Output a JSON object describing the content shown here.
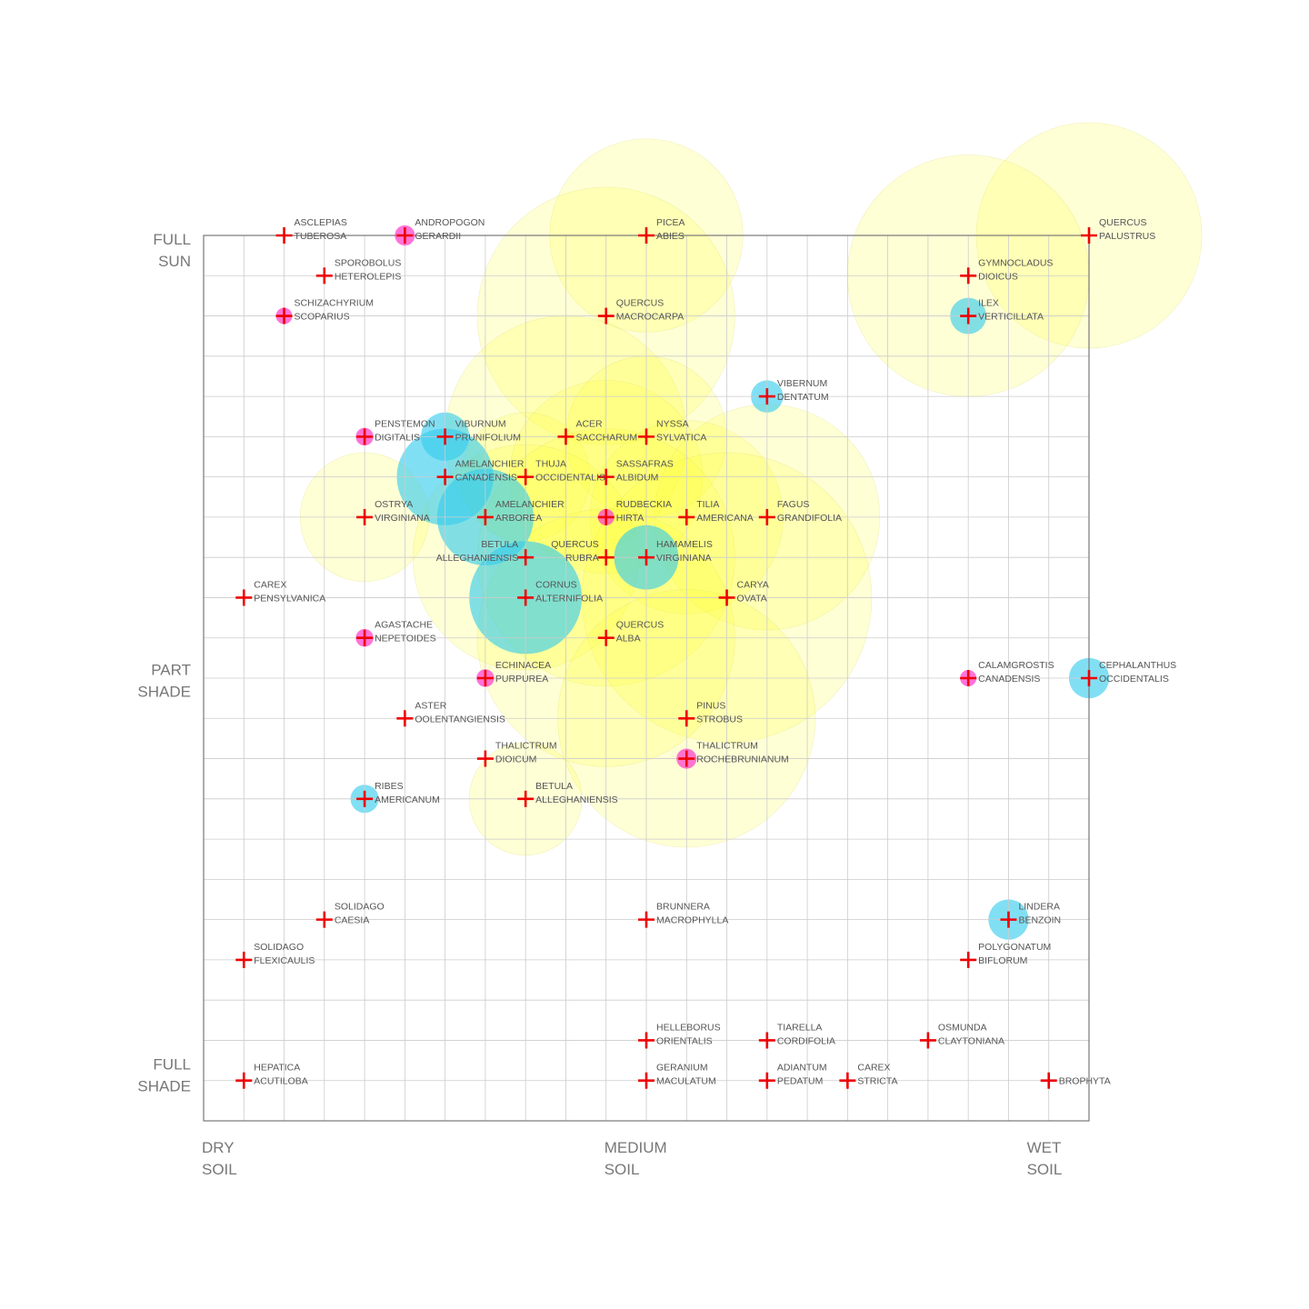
{
  "chart_data": {
    "type": "scatter",
    "x_axis": {
      "min": 0,
      "max": 22,
      "labels": [
        {
          "x": 0,
          "lines": [
            "DRY",
            "SOIL"
          ]
        },
        {
          "x": 10,
          "lines": [
            "MEDIUM",
            "SOIL"
          ]
        },
        {
          "x": 20.5,
          "lines": [
            "WET",
            "SOIL"
          ]
        }
      ]
    },
    "y_axis": {
      "min": 0,
      "max": 22,
      "labels": [
        {
          "y": 22,
          "lines": [
            "FULL",
            "SUN"
          ]
        },
        {
          "y": 11.3,
          "lines": [
            "PART",
            "SHADE"
          ]
        },
        {
          "y": 1.5,
          "lines": [
            "FULL",
            "SHADE"
          ]
        }
      ]
    },
    "grid": true,
    "colors": {
      "tree_canopy": "#ffff33",
      "shrub_canopy": "#33ccee",
      "flower": "#ff44cc",
      "marker": "#ee0000",
      "grid": "#cccccc",
      "frame": "#777777"
    },
    "points": [
      {
        "lines": [
          "ASCLEPIAS",
          "TUBEROSA"
        ],
        "x": 2,
        "y": 22,
        "canopy": "none"
      },
      {
        "lines": [
          "ANDROPOGON",
          "GERARDII"
        ],
        "x": 5,
        "y": 22,
        "canopy": "flower",
        "r": 0.25
      },
      {
        "lines": [
          "PICEA",
          "ABIES"
        ],
        "x": 11,
        "y": 22,
        "canopy": "tree",
        "r": 2.4
      },
      {
        "lines": [
          "QUERCUS",
          "PALUSTRUS"
        ],
        "x": 22,
        "y": 22,
        "canopy": "tree",
        "r": 2.8
      },
      {
        "lines": [
          "SPOROBOLUS",
          "HETEROLEPIS"
        ],
        "x": 3,
        "y": 21,
        "canopy": "none"
      },
      {
        "lines": [
          "GYMNOCLADUS",
          "DIOICUS"
        ],
        "x": 19,
        "y": 21,
        "canopy": "tree",
        "r": 3.0
      },
      {
        "lines": [
          "SCHIZACHYRIUM",
          "SCOPARIUS"
        ],
        "x": 2,
        "y": 20,
        "canopy": "flower",
        "r": 0.2
      },
      {
        "lines": [
          "QUERCUS",
          "MACROCARPA"
        ],
        "x": 10,
        "y": 20,
        "canopy": "tree",
        "r": 3.2
      },
      {
        "lines": [
          "ILEX",
          "VERTICILLATA"
        ],
        "x": 19,
        "y": 20,
        "canopy": "shrub",
        "r": 0.45
      },
      {
        "lines": [
          "VIBERNUM",
          "DENTATUM"
        ],
        "x": 14,
        "y": 18,
        "canopy": "shrub",
        "r": 0.4
      },
      {
        "lines": [
          "PENSTEMON",
          "DIGITALIS"
        ],
        "x": 4,
        "y": 17,
        "canopy": "flower",
        "r": 0.22
      },
      {
        "lines": [
          "VIBURNUM",
          "PRUNIFOLIUM"
        ],
        "x": 6,
        "y": 17,
        "canopy": "shrub",
        "r": 0.6
      },
      {
        "lines": [
          "ACER",
          "SACCHARUM"
        ],
        "x": 9,
        "y": 17,
        "canopy": "tree",
        "r": 3.0
      },
      {
        "lines": [
          "NYSSA",
          "SYLVATICA"
        ],
        "x": 11,
        "y": 17,
        "canopy": "tree",
        "r": 2.0
      },
      {
        "lines": [
          "AMELANCHIER",
          "CANADENSIS"
        ],
        "x": 6,
        "y": 16,
        "canopy": "shrub",
        "r": 1.2
      },
      {
        "lines": [
          "THUJA",
          "OCCIDENTALIS"
        ],
        "x": 8,
        "y": 16,
        "canopy": "tree",
        "r": 1.6
      },
      {
        "lines": [
          "SASSAFRAS",
          "ALBIDUM"
        ],
        "x": 10,
        "y": 16,
        "canopy": "tree",
        "r": 2.4
      },
      {
        "lines": [
          "OSTRYA",
          "VIRGINIANA"
        ],
        "x": 4,
        "y": 15,
        "canopy": "tree",
        "r": 1.6
      },
      {
        "lines": [
          "AMELANCHIER",
          "ARBOREA"
        ],
        "x": 7,
        "y": 15,
        "canopy": "shrub",
        "r": 1.2
      },
      {
        "lines": [
          "RUDBECKIA",
          "HIRTA"
        ],
        "x": 10,
        "y": 15,
        "canopy": "flower",
        "r": 0.2
      },
      {
        "lines": [
          "TILIA",
          "AMERICANA"
        ],
        "x": 12,
        "y": 15,
        "canopy": "tree",
        "r": 2.4
      },
      {
        "lines": [
          "FAGUS",
          "GRANDIFOLIA"
        ],
        "x": 14,
        "y": 15,
        "canopy": "tree",
        "r": 2.8
      },
      {
        "lines": [
          "BETULA",
          "ALLEGHANIENSIS"
        ],
        "x": 8,
        "y": 14,
        "canopy": "tree",
        "r": 2.8,
        "label_side": "left"
      },
      {
        "lines": [
          "QUERCUS",
          "RUBRA"
        ],
        "x": 10,
        "y": 14,
        "canopy": "tree",
        "r": 3.2,
        "label_side": "left"
      },
      {
        "lines": [
          "HAMAMELIS",
          "VIRGINIANA"
        ],
        "x": 11,
        "y": 14,
        "canopy": "shrub",
        "r": 0.8
      },
      {
        "lines": [
          "CAREX",
          "PENSYLVANICA"
        ],
        "x": 1,
        "y": 13,
        "canopy": "none"
      },
      {
        "lines": [
          "CORNUS",
          "ALTERNIFOLIA"
        ],
        "x": 8,
        "y": 13,
        "canopy": "shrub",
        "r": 1.4
      },
      {
        "lines": [
          "CARYA",
          "OVATA"
        ],
        "x": 13,
        "y": 13,
        "canopy": "tree",
        "r": 3.6
      },
      {
        "lines": [
          "AGASTACHE",
          "NEPETOIDES"
        ],
        "x": 4,
        "y": 12,
        "canopy": "flower",
        "r": 0.22
      },
      {
        "lines": [
          "QUERCUS",
          "ALBA"
        ],
        "x": 10,
        "y": 12,
        "canopy": "tree",
        "r": 3.2
      },
      {
        "lines": [
          "ECHINACEA",
          "PURPUREA"
        ],
        "x": 7,
        "y": 11,
        "canopy": "flower",
        "r": 0.22
      },
      {
        "lines": [
          "CALAMGROSTIS",
          "CANADENSIS"
        ],
        "x": 19,
        "y": 11,
        "canopy": "flower",
        "r": 0.2
      },
      {
        "lines": [
          "CEPHALANTHUS",
          "OCCIDENTALIS"
        ],
        "x": 22,
        "y": 11,
        "canopy": "shrub",
        "r": 0.5
      },
      {
        "lines": [
          "ASTER",
          "OOLENTANGIENSIS"
        ],
        "x": 5,
        "y": 10,
        "canopy": "none"
      },
      {
        "lines": [
          "PINUS",
          "STROBUS"
        ],
        "x": 12,
        "y": 10,
        "canopy": "tree",
        "r": 3.2
      },
      {
        "lines": [
          "THALICTRUM",
          "DIOICUM"
        ],
        "x": 7,
        "y": 9,
        "canopy": "none"
      },
      {
        "lines": [
          "THALICTRUM",
          "ROCHEBRUNIANUM"
        ],
        "x": 12,
        "y": 9,
        "canopy": "flower",
        "r": 0.25
      },
      {
        "lines": [
          "RIBES",
          "AMERICANUM"
        ],
        "x": 4,
        "y": 8,
        "canopy": "shrub",
        "r": 0.35
      },
      {
        "lines": [
          "BETULA",
          "ALLEGHANIENSIS"
        ],
        "x": 8,
        "y": 8,
        "canopy": "tree",
        "r": 1.4
      },
      {
        "lines": [
          "SOLIDAGO",
          "CAESIA"
        ],
        "x": 3,
        "y": 5,
        "canopy": "none"
      },
      {
        "lines": [
          "BRUNNERA",
          "MACROPHYLLA"
        ],
        "x": 11,
        "y": 5,
        "canopy": "none"
      },
      {
        "lines": [
          "LINDERA",
          "BENZOIN"
        ],
        "x": 20,
        "y": 5,
        "canopy": "shrub",
        "r": 0.5
      },
      {
        "lines": [
          "SOLIDAGO",
          "FLEXICAULIS"
        ],
        "x": 1,
        "y": 4,
        "canopy": "none"
      },
      {
        "lines": [
          "POLYGONATUM",
          "BIFLORUM"
        ],
        "x": 19,
        "y": 4,
        "canopy": "none"
      },
      {
        "lines": [
          "HELLEBORUS",
          "ORIENTALIS"
        ],
        "x": 11,
        "y": 2,
        "canopy": "none"
      },
      {
        "lines": [
          "TIARELLA",
          "CORDIFOLIA"
        ],
        "x": 14,
        "y": 2,
        "canopy": "none"
      },
      {
        "lines": [
          "OSMUNDA",
          "CLAYTONIANA"
        ],
        "x": 18,
        "y": 2,
        "canopy": "none"
      },
      {
        "lines": [
          "HEPATICA",
          "ACUTILOBA"
        ],
        "x": 1,
        "y": 1,
        "canopy": "none"
      },
      {
        "lines": [
          "GERANIUM",
          "MACULATUM"
        ],
        "x": 11,
        "y": 1,
        "canopy": "none"
      },
      {
        "lines": [
          "ADIANTUM",
          "PEDATUM"
        ],
        "x": 14,
        "y": 1,
        "canopy": "none"
      },
      {
        "lines": [
          "CAREX",
          "STRICTA"
        ],
        "x": 16,
        "y": 1,
        "canopy": "none"
      },
      {
        "lines": [
          "BROPHYTA"
        ],
        "x": 21,
        "y": 1,
        "canopy": "none",
        "single_line": true
      }
    ]
  }
}
